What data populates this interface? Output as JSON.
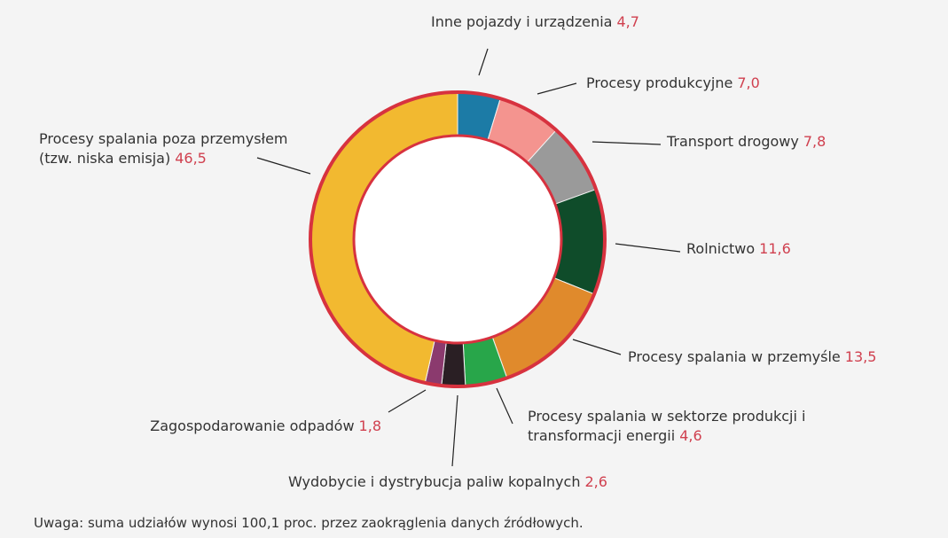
{
  "chart_data": {
    "type": "donut",
    "categories": [
      "Inne pojazdy i urządzenia",
      "Procesy produkcyjne",
      "Transport drogowy",
      "Rolnictwo",
      "Procesy spalania w przemyśle",
      "Procesy spalania w sektorze produkcji i transformacji energii",
      "Wydobycie i dystrybucja paliw kopalnych",
      "Zagospodarowanie odpadów",
      "Procesy spalania poza przemysłem (tzw. niska emisja)"
    ],
    "values": [
      4.7,
      7.0,
      7.8,
      11.6,
      13.5,
      4.6,
      2.6,
      1.8,
      46.5
    ],
    "value_labels": [
      "4,7",
      "7,0",
      "7,8",
      "11,6",
      "13,5",
      "4,6",
      "2,6",
      "1,8",
      "46,5"
    ],
    "colors": [
      "#1c7ba6",
      "#f4948f",
      "#9a9a9a",
      "#0f4c2a",
      "#e08a2c",
      "#28a64a",
      "#2a1f24",
      "#8b3a6e",
      "#f2b930"
    ],
    "note": "Uwaga: suma udziałów wynosi 100,1 proc. przez zaokrąglenia danych źródłowych."
  }
}
